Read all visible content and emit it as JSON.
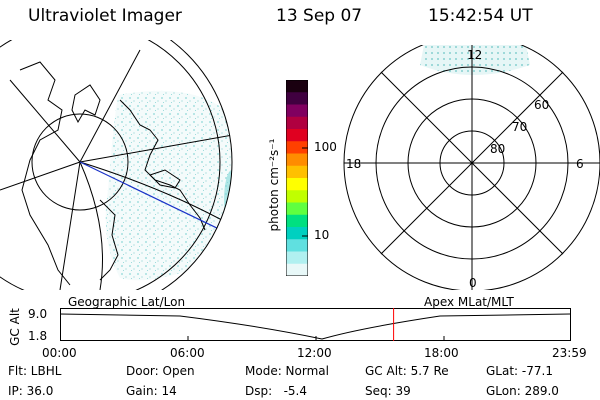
{
  "header": {
    "title": "Ultraviolet Imager",
    "date": "13 Sep 07",
    "time": "15:42:54 UT"
  },
  "colorbar": {
    "unit_label": "photon cm⁻²s⁻¹",
    "ticks": [
      "100",
      "10"
    ],
    "colors": [
      "#1a0010",
      "#400040",
      "#800060",
      "#b00040",
      "#e00020",
      "#ff4000",
      "#ff8c00",
      "#ffc000",
      "#ffff00",
      "#c0ff00",
      "#60ff40",
      "#00e080",
      "#00d0c0",
      "#60e0e0",
      "#b0f0f0",
      "#e8f8f8"
    ]
  },
  "polar": {
    "top_label": "12",
    "left_label": "18",
    "right_label": "6",
    "bottom_label": "0",
    "ring_labels": [
      "60",
      "70",
      "80"
    ]
  },
  "labels": {
    "geographic": "Geographic Lat/Lon",
    "apex": "Apex MLat/MLT"
  },
  "timeline": {
    "axis_label": "GC Alt",
    "y_ticks": [
      "9.0",
      "1.8"
    ],
    "x_ticks": [
      "00:00",
      "06:00",
      "12:00",
      "18:00",
      "23:59"
    ],
    "marker_hour": 15.7
  },
  "info": {
    "filter": "Flt: LBHL",
    "ip": "IP: 36.0",
    "door": "Door: Open",
    "gain": "Gain: 14",
    "mode": "Mode: Normal",
    "dsp": "Dsp:   -5.4",
    "gc_alt": "GC Alt: 5.7 Re",
    "seq": "Seq: 39",
    "glat": "GLat: -77.1",
    "glon": "GLon: 289.0"
  }
}
